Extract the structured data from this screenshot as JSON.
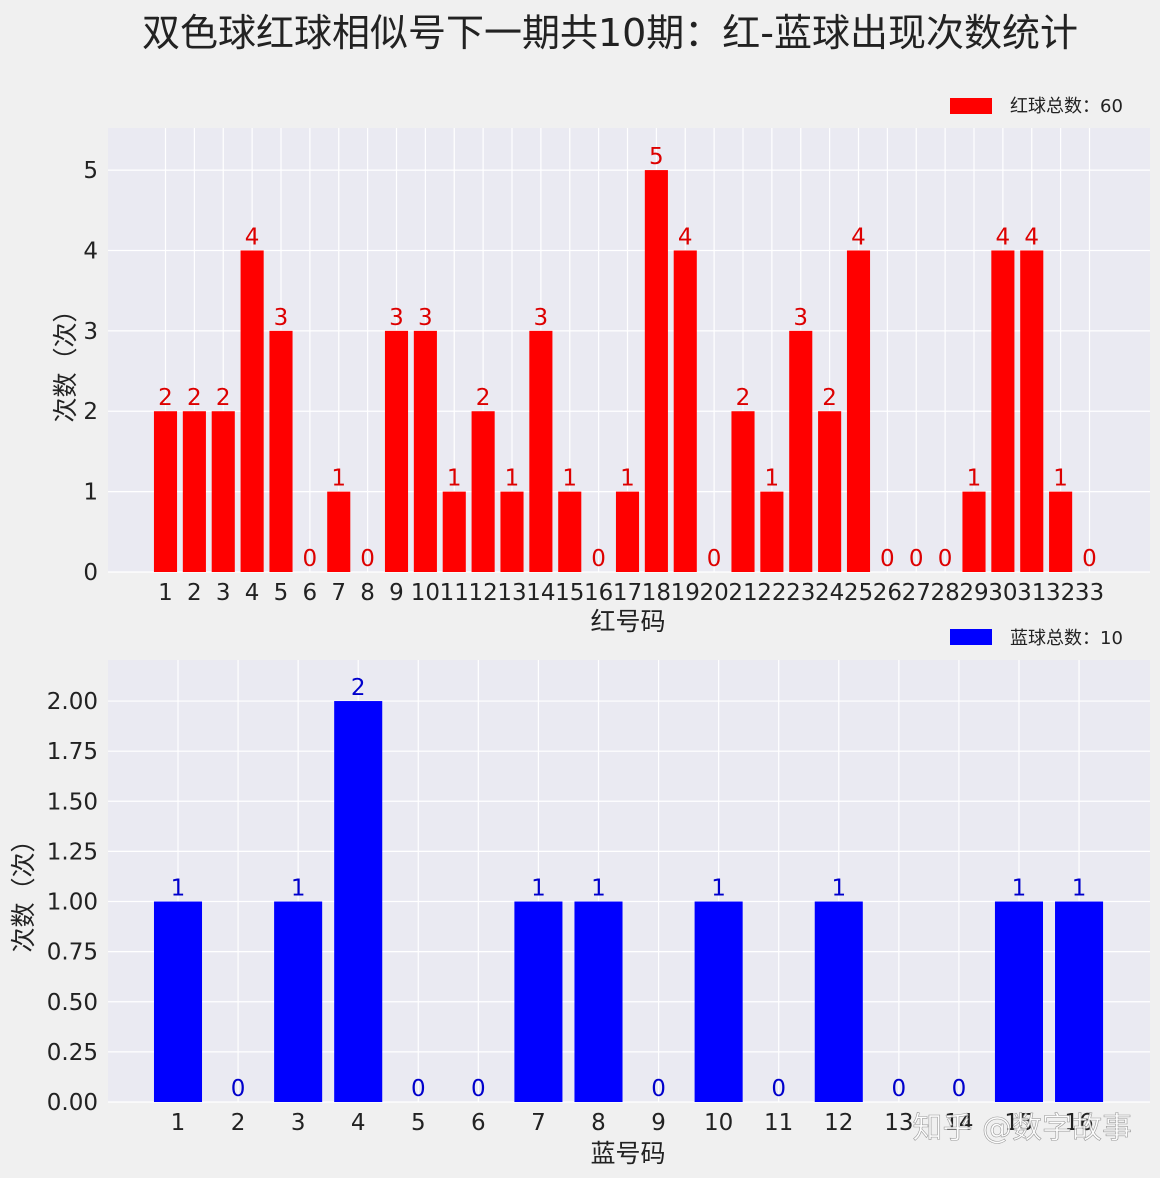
{
  "title": "双色球红球相似号下一期共10期：红-蓝球出现次数统计",
  "watermark": "知乎 @数字故事",
  "chart_data": [
    {
      "type": "bar",
      "categories": [
        "1",
        "2",
        "3",
        "4",
        "5",
        "6",
        "7",
        "8",
        "9",
        "10",
        "11",
        "12",
        "13",
        "14",
        "15",
        "16",
        "17",
        "18",
        "19",
        "20",
        "21",
        "22",
        "23",
        "24",
        "25",
        "26",
        "27",
        "28",
        "29",
        "30",
        "31",
        "32",
        "33"
      ],
      "values": [
        2,
        2,
        2,
        4,
        3,
        0,
        1,
        0,
        3,
        3,
        1,
        2,
        1,
        3,
        1,
        0,
        1,
        5,
        4,
        0,
        2,
        1,
        3,
        2,
        4,
        0,
        0,
        0,
        1,
        4,
        4,
        1,
        0
      ],
      "xlabel": "红号码",
      "ylabel": "次数（次）",
      "ylim": [
        0,
        5.25
      ],
      "yticks": [
        "0",
        "1",
        "2",
        "3",
        "4",
        "5"
      ],
      "legend": "红球总数：60",
      "legend_position": "top-right",
      "bar_color": "#ff0000",
      "label_color": "#dd0000",
      "grid": true
    },
    {
      "type": "bar",
      "categories": [
        "1",
        "2",
        "3",
        "4",
        "5",
        "6",
        "7",
        "8",
        "9",
        "10",
        "11",
        "12",
        "13",
        "14",
        "15",
        "16"
      ],
      "values": [
        1,
        0,
        1,
        2,
        0,
        0,
        1,
        1,
        0,
        1,
        0,
        1,
        0,
        0,
        1,
        1
      ],
      "xlabel": "蓝号码",
      "ylabel": "次数（次）",
      "ylim": [
        0,
        2.1
      ],
      "yticks": [
        "0.00",
        "0.25",
        "0.50",
        "0.75",
        "1.00",
        "1.25",
        "1.50",
        "1.75",
        "2.00"
      ],
      "legend": "蓝球总数：10",
      "legend_position": "top-right",
      "bar_color": "#0000ff",
      "label_color": "#0000cc",
      "grid": true
    }
  ]
}
